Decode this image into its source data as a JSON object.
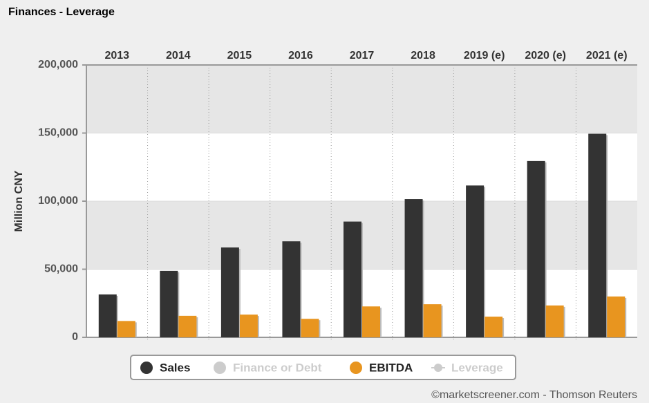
{
  "chart_data": {
    "type": "bar",
    "title": "Finances - Leverage",
    "ylabel": "Million CNY",
    "categories": [
      "2013",
      "2014",
      "2015",
      "2016",
      "2017",
      "2018",
      "2019 (e)",
      "2020 (e)",
      "2021 (e)"
    ],
    "series": [
      {
        "name": "Sales",
        "color": "#333333",
        "values": [
          31500,
          48800,
          66000,
          70500,
          85000,
          101500,
          111500,
          129500,
          149500
        ]
      },
      {
        "name": "Finance or Debt",
        "color": "#cccccc",
        "visible": false,
        "values": [
          null,
          null,
          null,
          null,
          null,
          null,
          null,
          null,
          null
        ]
      },
      {
        "name": "EBITDA",
        "color": "#e8951f",
        "values": [
          12000,
          15800,
          16700,
          13600,
          22700,
          24300,
          15200,
          23400,
          30000
        ]
      },
      {
        "name": "Leverage",
        "color": "#cccccc",
        "visible": false,
        "legend_style": "line",
        "values": [
          null,
          null,
          null,
          null,
          null,
          null,
          null,
          null,
          null
        ]
      }
    ],
    "ylim": [
      0,
      200000
    ],
    "yticks": [
      0,
      {
        "value": 50000,
        "label": "50,000"
      },
      {
        "value": 100000,
        "label": "100,000"
      },
      {
        "value": 150000,
        "label": "150,000"
      },
      {
        "value": 200000,
        "label": "200,000"
      }
    ],
    "grid": true,
    "source": "©marketscreener.com - Thomson Reuters"
  }
}
